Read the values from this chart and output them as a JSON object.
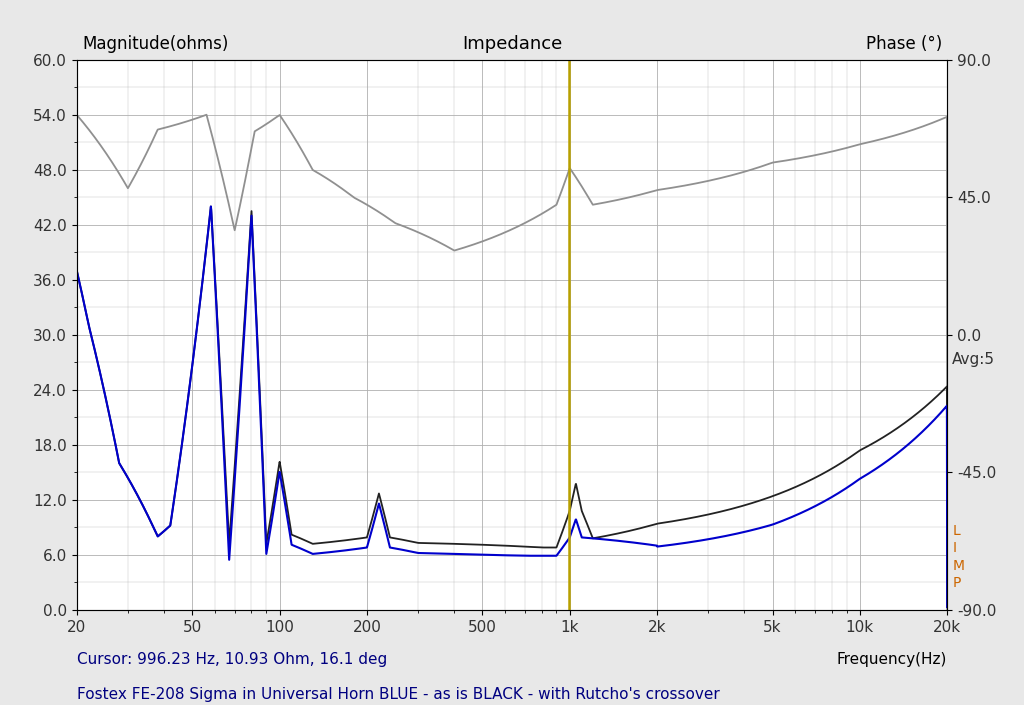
{
  "title": "Impedance",
  "ylabel_left": "Magnitude(ohms)",
  "ylabel_right": "Phase (°)",
  "xlabel": "Frequency(Hz)",
  "cursor_text": "Cursor: 996.23 Hz, 10.93 Ohm, 16.1 deg",
  "subtitle": "Fostex FE-208 Sigma in Universal Horn BLUE - as is BLACK - with Rutcho's crossover",
  "avg_text": "Avg:5",
  "ylim_left": [
    0.0,
    60.0
  ],
  "ylim_right": [
    -90.0,
    90.0
  ],
  "xlim": [
    20,
    20000
  ],
  "yticks_left": [
    0.0,
    6.0,
    12.0,
    18.0,
    24.0,
    30.0,
    36.0,
    42.0,
    48.0,
    54.0,
    60.0
  ],
  "yticks_right": [
    -90.0,
    -45.0,
    0.0,
    45.0,
    90.0
  ],
  "xticks": [
    20,
    50,
    100,
    200,
    500,
    1000,
    2000,
    5000,
    10000,
    20000
  ],
  "xtick_labels": [
    "20",
    "50",
    "100",
    "200",
    "500",
    "1k",
    "2k",
    "5k",
    "10k",
    "20k"
  ],
  "cursor_freq": 996.23,
  "bg_color": "#e8e8e8",
  "plot_bg_color": "#ffffff",
  "grid_color": "#b0b0b0",
  "blue_color": "#0000cc",
  "black_color": "#222222",
  "gray_color": "#909090",
  "cursor_line_color": "#b8a000",
  "title_color": "#000000",
  "label_color": "#000000",
  "cursor_text_color": "#000080",
  "subtitle_color": "#000080",
  "avg_color": "#333333",
  "limp_color": "#cc6600",
  "tick_color": "#333333"
}
